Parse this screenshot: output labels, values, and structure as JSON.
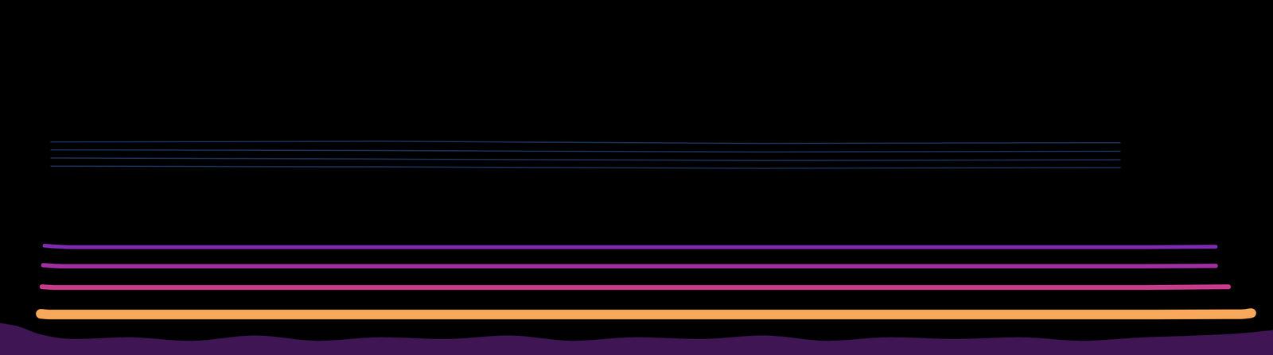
{
  "chart_data": {
    "type": "line",
    "xlim": [
      0,
      100
    ],
    "ylim": [
      0,
      100
    ],
    "xticks": [
      0,
      100
    ],
    "yticks": [
      0,
      100
    ],
    "tick_labels": false,
    "grid": false,
    "series": [
      {
        "type": "area",
        "color": "#5a1e78",
        "x": [
          0,
          1.5,
          3,
          6,
          10,
          15,
          20,
          25,
          30,
          35,
          40,
          45,
          50,
          55,
          60,
          65,
          70,
          75,
          80,
          85,
          90,
          94,
          97,
          100
        ],
        "values": [
          9,
          8,
          6,
          4.5,
          5,
          4,
          5.5,
          4,
          5,
          4.5,
          5.5,
          4,
          5,
          4.5,
          5.5,
          4,
          5,
          4.5,
          5,
          4,
          5,
          5.5,
          6,
          7
        ]
      },
      {
        "type": "line",
        "color": "#f7a85a",
        "x": [
          3.2,
          4,
          30,
          60,
          90,
          97.5,
          98.3
        ],
        "values": [
          11.6,
          11.4,
          11.4,
          11.4,
          11.4,
          11.5,
          11.8
        ]
      },
      {
        "type": "line",
        "color": "#c93a8c",
        "x": [
          3.3,
          4.5,
          30,
          60,
          90,
          96.5
        ],
        "values": [
          19.2,
          19,
          19,
          19,
          19,
          19.2
        ]
      },
      {
        "type": "line",
        "color": "#a02fa0",
        "x": [
          3.4,
          5,
          30,
          60,
          90,
          95.5
        ],
        "values": [
          25.3,
          25,
          25,
          25,
          25,
          25.1
        ]
      },
      {
        "type": "line",
        "color": "#7e2ab2",
        "x": [
          3.5,
          5.5,
          30,
          60,
          90,
          95.5
        ],
        "values": [
          30.8,
          30.4,
          30.4,
          30.4,
          30.4,
          30.5
        ]
      },
      {
        "type": "line",
        "color": "#1c3563",
        "x": [
          4,
          30,
          60,
          88
        ],
        "values": [
          60,
          60.2,
          59.6,
          59.8
        ]
      },
      {
        "type": "line",
        "color": "#1c3563",
        "x": [
          4,
          30,
          60,
          88
        ],
        "values": [
          57.8,
          57.6,
          57.2,
          57.4
        ]
      },
      {
        "type": "line",
        "color": "#1c3563",
        "x": [
          4,
          30,
          60,
          88
        ],
        "values": [
          55.5,
          55.2,
          54.8,
          55
        ]
      },
      {
        "type": "line",
        "color": "#1c3563",
        "x": [
          4,
          30,
          60,
          88
        ],
        "values": [
          53.2,
          53,
          52.6,
          52.8
        ]
      }
    ]
  }
}
